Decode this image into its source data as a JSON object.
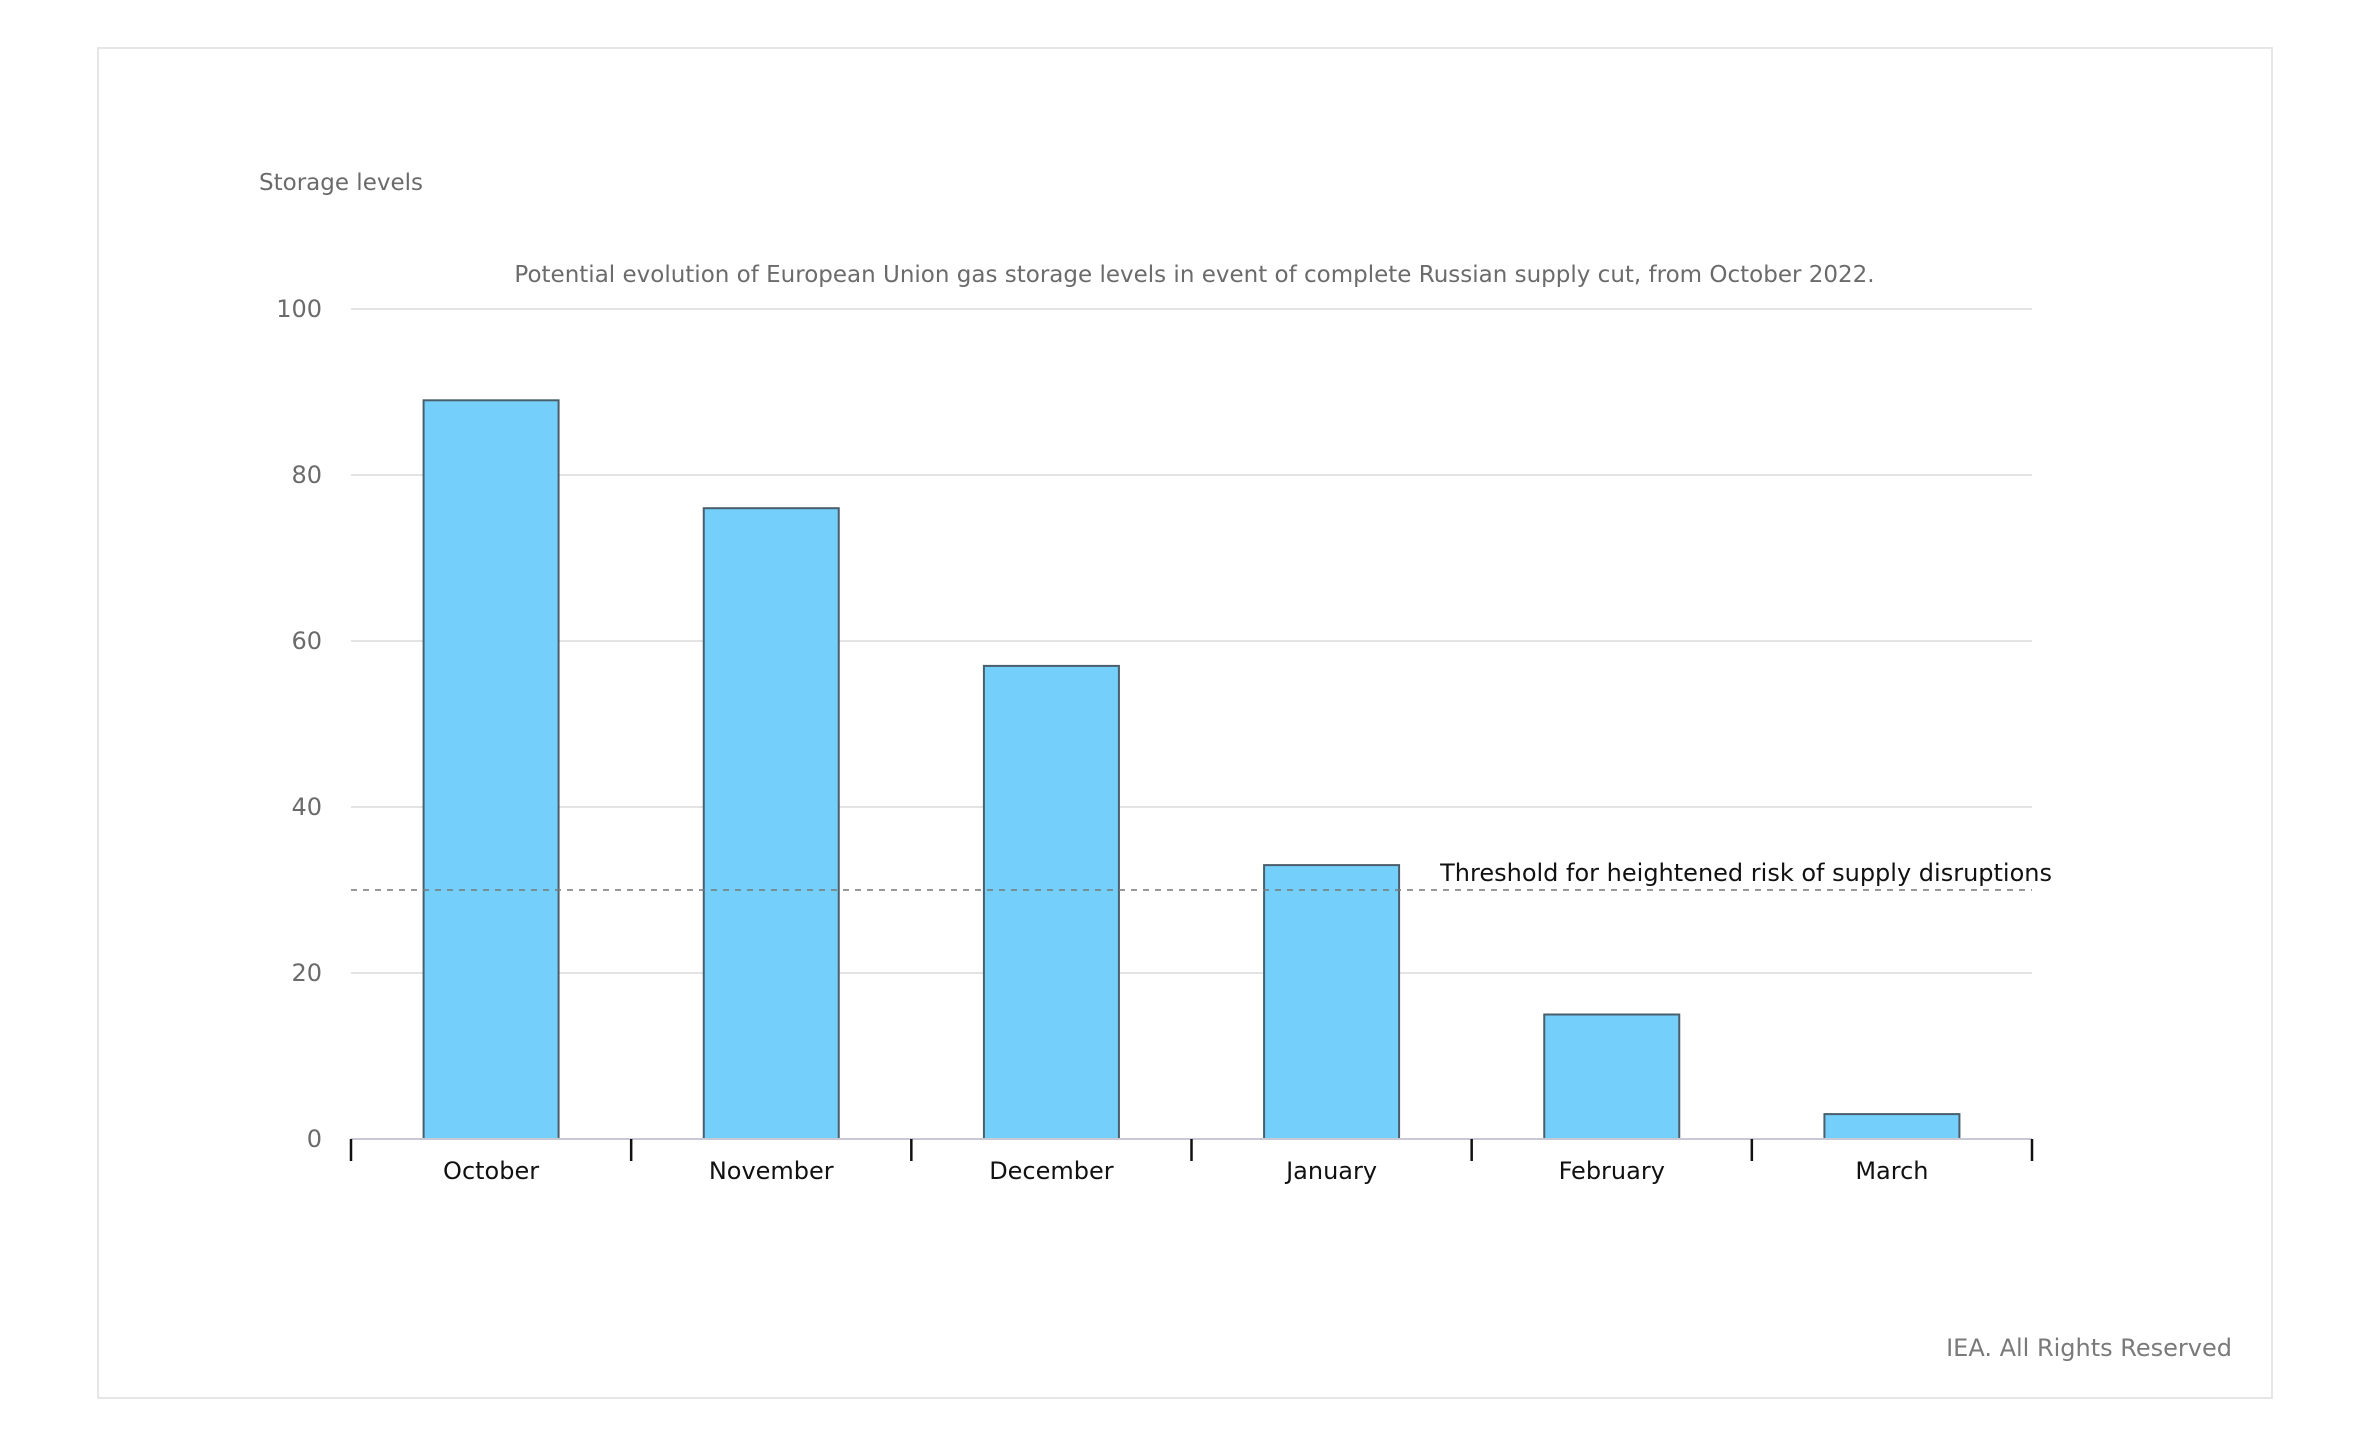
{
  "chart_data": {
    "type": "bar",
    "title": "Potential evolution of European Union gas storage levels in event of complete Russian supply cut, from October 2022.",
    "ylabel": "Storage levels",
    "xlabel": "",
    "categories": [
      "October",
      "November",
      "December",
      "January",
      "February",
      "March"
    ],
    "values": [
      89,
      76,
      57,
      33,
      15,
      3
    ],
    "ylim": [
      0,
      100
    ],
    "yticks": [
      0,
      20,
      40,
      60,
      80,
      100
    ],
    "grid": true,
    "bar_color": "#74cffa",
    "bar_stroke": "#4a5f6b",
    "threshold": {
      "value": 30,
      "label": "Threshold for heightened risk of supply disruptions",
      "style": "dashed"
    }
  },
  "footer": "IEA. All Rights Reserved"
}
